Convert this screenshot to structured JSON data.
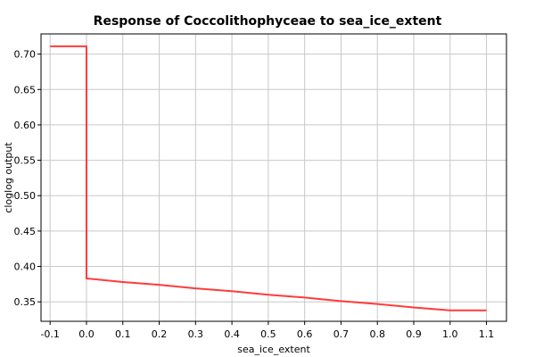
{
  "chart_data": {
    "type": "line",
    "title": "Response of Coccolithophyceae to sea_ice_extent",
    "xlabel": "sea_ice_extent",
    "ylabel": "cloglog output",
    "xlim": [
      -0.125,
      1.155
    ],
    "ylim": [
      0.3225,
      0.7285
    ],
    "x_ticks": [
      -0.1,
      0.0,
      0.1,
      0.2,
      0.3,
      0.4,
      0.5,
      0.6,
      0.7,
      0.8,
      0.9,
      1.0,
      1.1
    ],
    "x_tick_labels": [
      "-0.1",
      "0.0",
      "0.1",
      "0.2",
      "0.3",
      "0.4",
      "0.5",
      "0.6",
      "0.7",
      "0.8",
      "0.9",
      "1.0",
      "1.1"
    ],
    "y_ticks": [
      0.35,
      0.4,
      0.45,
      0.5,
      0.55,
      0.6,
      0.65,
      0.7
    ],
    "y_tick_labels": [
      "0.35",
      "0.40",
      "0.45",
      "0.50",
      "0.55",
      "0.60",
      "0.65",
      "0.70"
    ],
    "grid": true,
    "series": [
      {
        "color": "#ff3b3b",
        "x": [
          -0.1,
          0.0,
          0.0,
          0.1,
          0.2,
          0.3,
          0.4,
          0.5,
          0.6,
          0.7,
          0.8,
          0.9,
          1.0,
          1.1
        ],
        "y": [
          0.711,
          0.711,
          0.383,
          0.378,
          0.374,
          0.369,
          0.365,
          0.36,
          0.356,
          0.351,
          0.347,
          0.342,
          0.338,
          0.338
        ]
      }
    ]
  }
}
